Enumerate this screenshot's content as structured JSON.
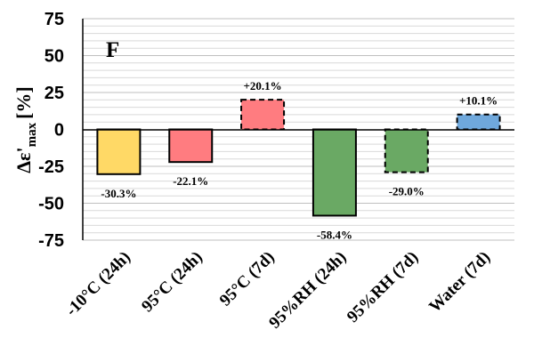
{
  "chart_data": {
    "type": "bar",
    "panel_label": "F",
    "ylabel": {
      "base": "Δε",
      "prime": "'",
      "subscript": "max",
      "unit": "[%]"
    },
    "ylim": [
      -75,
      75
    ],
    "y_ticks": [
      "75",
      "50",
      "25",
      "0",
      "-25",
      "-50",
      "-75"
    ],
    "y_tick_values": [
      75,
      50,
      25,
      0,
      -25,
      -50,
      -75
    ],
    "grid": true,
    "categories": [
      "-10°C (24h)",
      "95°C (24h)",
      "95°C (7d)",
      "95%RH (24h)",
      "95%RH (7d)",
      "Water (7d)"
    ],
    "values": [
      -30.3,
      -22.1,
      20.1,
      -58.4,
      -29.0,
      10.1
    ],
    "data_labels": [
      "-30.3%",
      "-22.1%",
      "+20.1%",
      "-58.4%",
      "-29.0%",
      "+10.1%"
    ],
    "bar_colors": [
      "#FFD966",
      "#FF7C80",
      "#FF7C80",
      "#6AA964",
      "#6AA964",
      "#6FA8DC"
    ],
    "bar_dashed": [
      false,
      false,
      true,
      false,
      true,
      true
    ]
  }
}
